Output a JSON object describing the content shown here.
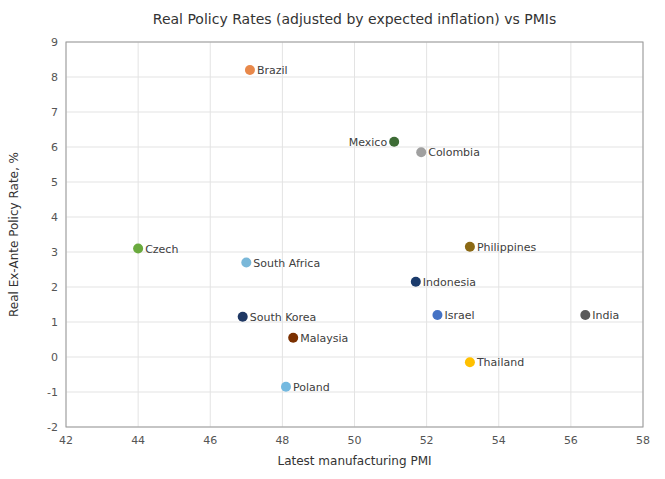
{
  "chart_data": {
    "type": "scatter",
    "title": "Real Policy Rates (adjusted by expected inflation) vs PMIs",
    "x_label": "Latest manufacturing PMI",
    "y_label": "Real Ex-Ante Policy Rate, %",
    "xlim": [
      42,
      58
    ],
    "ylim": [
      -2,
      9
    ],
    "xticks": [
      42,
      44,
      46,
      48,
      50,
      52,
      54,
      56,
      58
    ],
    "yticks": [
      -2,
      -1,
      0,
      1,
      2,
      3,
      4,
      5,
      6,
      7,
      8,
      9
    ],
    "grid": true,
    "annotations": [
      "Brazil",
      "Mexico",
      "Colombia",
      "Czech",
      "Philippines",
      "South Africa",
      "Indonesia",
      "Israel",
      "South Korea",
      "Malaysia",
      "India",
      "Thailand",
      "Poland"
    ],
    "x": [
      47.1,
      51.1,
      51.85,
      44.0,
      53.2,
      47.0,
      51.7,
      52.3,
      46.9,
      48.3,
      56.4,
      53.2,
      48.1
    ],
    "values": [
      8.2,
      6.15,
      5.85,
      3.1,
      3.15,
      2.7,
      2.15,
      1.2,
      1.15,
      0.55,
      1.2,
      -0.15,
      -0.85
    ],
    "colors": [
      "#e8884a",
      "#3d6b35",
      "#a0a0a0",
      "#6aaa3e",
      "#8b6914",
      "#7ab8d9",
      "#1a3a6b",
      "#4472c4",
      "#1f3864",
      "#7b3000",
      "#595959",
      "#ffc000",
      "#74b9e0"
    ]
  }
}
